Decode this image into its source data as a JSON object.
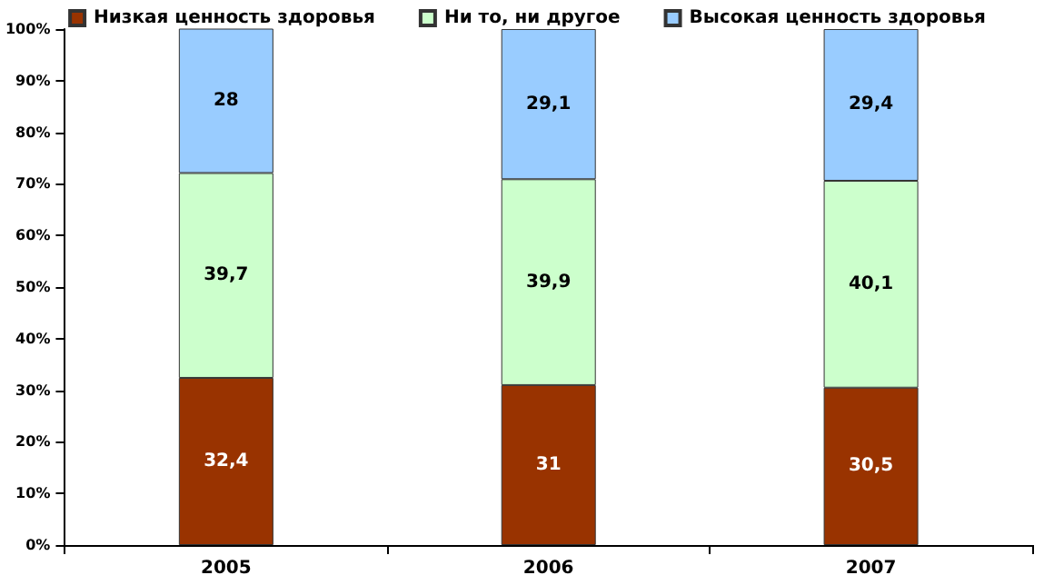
{
  "chart_data": {
    "type": "bar",
    "stacked": true,
    "categories": [
      "2005",
      "2006",
      "2007"
    ],
    "series": [
      {
        "name": "Низкая ценность здоровья",
        "color": "#993300",
        "values": [
          32.4,
          31,
          30.5
        ],
        "value_labels": [
          "32,4",
          "31",
          "30,5"
        ]
      },
      {
        "name": "Ни то, ни другое",
        "color": "#ccffcc",
        "values": [
          39.7,
          39.9,
          40.1
        ],
        "value_labels": [
          "39,7",
          "39,9",
          "40,1"
        ]
      },
      {
        "name": "Высокая ценность здоровья",
        "color": "#99ccff",
        "values": [
          28,
          29.1,
          29.4
        ],
        "value_labels": [
          "28",
          "29,1",
          "29,4"
        ]
      }
    ],
    "ylim": [
      0,
      100
    ],
    "yticks": [
      {
        "value": 0,
        "label": "0%"
      },
      {
        "value": 10,
        "label": "10%"
      },
      {
        "value": 20,
        "label": "20%"
      },
      {
        "value": 30,
        "label": "30%"
      },
      {
        "value": 40,
        "label": "40%"
      },
      {
        "value": 50,
        "label": "50%"
      },
      {
        "value": 60,
        "label": "60%"
      },
      {
        "value": 70,
        "label": "70%"
      },
      {
        "value": 80,
        "label": "80%"
      },
      {
        "value": 90,
        "label": "90%"
      },
      {
        "value": 100,
        "label": "100%"
      }
    ],
    "grid": false,
    "legend": "top"
  }
}
